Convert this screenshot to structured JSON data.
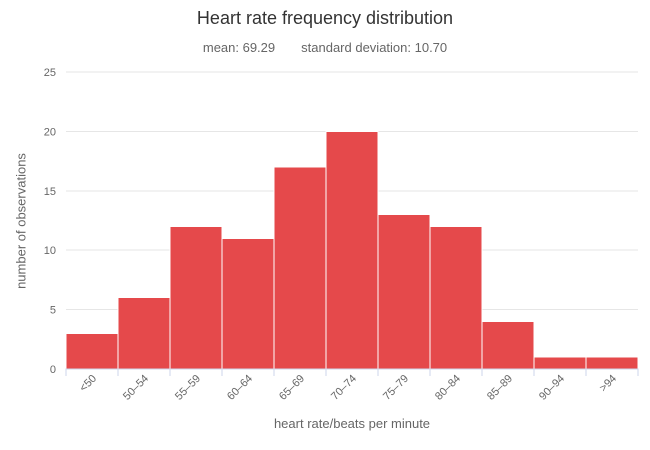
{
  "chart_data": {
    "type": "bar",
    "subtype": "histogram",
    "title": "Heart rate frequency distribution",
    "subtitle_parts": [
      "mean: 69.29",
      "standard deviation: 10.70"
    ],
    "stats": {
      "mean": 69.29,
      "standard_deviation": 10.7
    },
    "categories": [
      "<50",
      "50–54",
      "55–59",
      "60–64",
      "65–69",
      "70–74",
      "75–79",
      "80–84",
      "85–89",
      "90–94",
      ">94"
    ],
    "values": [
      3,
      6,
      12,
      11,
      17,
      20,
      13,
      12,
      4,
      1,
      1
    ],
    "xlabel": "heart rate/beats per minute",
    "ylabel": "number of observations",
    "ylim": [
      0,
      25
    ],
    "yticks": [
      0,
      5,
      10,
      15,
      20,
      25
    ],
    "grid": true,
    "legend": "none",
    "colors": {
      "bar_fill": "#e5494b",
      "bar_border": "#ffffff",
      "grid_line": "#e6e6e6",
      "axis_line": "#ccd6eb",
      "tick_mark": "#ccd6eb",
      "tick_label": "#666666",
      "axis_title": "#666666",
      "title_text": "#333333",
      "subtitle_text": "#666666",
      "background": "#ffffff"
    }
  }
}
